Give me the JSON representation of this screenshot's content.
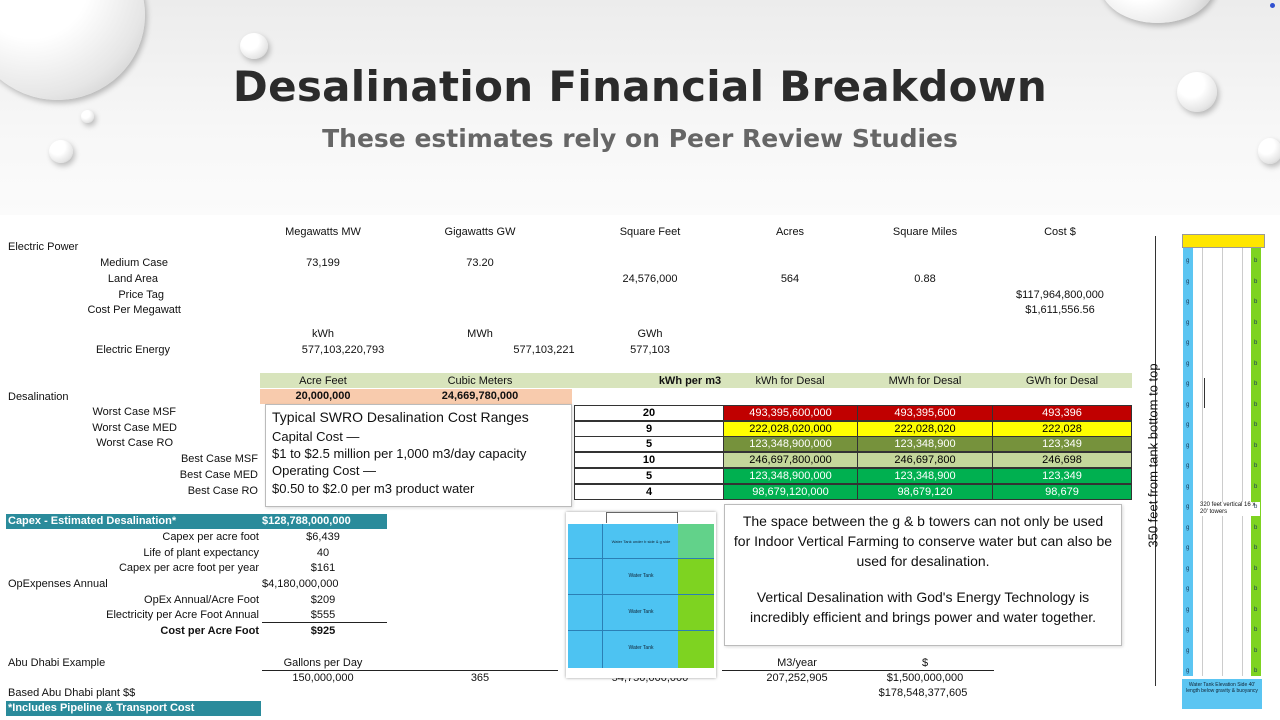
{
  "header": {
    "title": "Desalination Financial Breakdown",
    "subtitle": "These estimates rely on Peer Review Studies"
  },
  "power": {
    "columns": [
      "Megawatts MW",
      "Gigawatts GW",
      "Square Feet",
      "Acres",
      "Square Miles",
      "Cost $"
    ],
    "section": "Electric Power",
    "rows": {
      "medium_case": {
        "label": "Medium Case",
        "mw": "73,199",
        "gw": "73.20"
      },
      "land_area": {
        "label": "Land Area",
        "sqft": "24,576,000",
        "acres": "564",
        "sqmi": "0.88"
      },
      "price_tag": {
        "label": "Price Tag",
        "cost": "$117,964,800,000"
      },
      "cost_per_mw": {
        "label": "Cost Per Megawatt",
        "cost": "$1,611,556.56"
      }
    },
    "energy_units": [
      "kWh",
      "MWh",
      "GWh"
    ],
    "energy": {
      "label": "Electric Energy",
      "kwh": "577,103,220,793",
      "mwh": "577,103,221",
      "gwh": "577,103"
    }
  },
  "desal": {
    "section": "Desalination",
    "headers": [
      "Acre Feet",
      "Cubic Meters",
      "kWh per m3",
      "kWh for Desal",
      "MWh for Desal",
      "GWh for Desal"
    ],
    "acre_feet": "20,000,000",
    "cubic_meters": "24,669,780,000",
    "rows": [
      {
        "label": "Worst Case MSF",
        "kwh_m3": "20",
        "kwh": "493,395,600,000",
        "mwh": "493,395,600",
        "gwh": "493,396",
        "color": "#c00000",
        "text": "#ffffff"
      },
      {
        "label": "Worst Case MED",
        "kwh_m3": "9",
        "kwh": "222,028,020,000",
        "mwh": "222,028,020",
        "gwh": "222,028",
        "color": "#ffff00",
        "text": "#000000"
      },
      {
        "label": "Worst Case RO",
        "kwh_m3": "5",
        "kwh": "123,348,900,000",
        "mwh": "123,348,900",
        "gwh": "123,349",
        "color": "#76923c",
        "text": "#ffffff"
      },
      {
        "label": "Best Case MSF",
        "kwh_m3": "10",
        "kwh": "246,697,800,000",
        "mwh": "246,697,800",
        "gwh": "246,698",
        "color": "#c4d79b",
        "text": "#000000"
      },
      {
        "label": "Best Case MED",
        "kwh_m3": "5",
        "kwh": "123,348,900,000",
        "mwh": "123,348,900",
        "gwh": "123,349",
        "color": "#00b050",
        "text": "#ffffff"
      },
      {
        "label": "Best Case RO",
        "kwh_m3": "4",
        "kwh": "98,679,120,000",
        "mwh": "98,679,120",
        "gwh": "98,679",
        "color": "#00b050",
        "text": "#ffffff"
      }
    ]
  },
  "swro_callout": {
    "title": "Typical SWRO Desalination Cost Ranges",
    "l1": "Capital Cost —",
    "l2": "$1 to $2.5 million per 1,000 m3/day capacity",
    "l3": "Operating Cost —",
    "l4": "$0.50 to $2.0 per m3 product water"
  },
  "capex": {
    "title": "Capex - Estimated Desalination*",
    "total": "$128,788,000,000",
    "rows": [
      {
        "label": "Capex per acre foot",
        "value": "$6,439"
      },
      {
        "label": "Life of plant expectancy",
        "value": "40"
      },
      {
        "label": "Capex per acre foot per year",
        "value": "$161"
      }
    ],
    "opex_label": "OpExpenses Annual",
    "opex_value": "$4,180,000,000",
    "rows2": [
      {
        "label": "OpEx Annual/Acre Foot",
        "value": "$209"
      },
      {
        "label": "Electricity per Acre Foot Annual",
        "value": "$555"
      }
    ],
    "cost_label": "Cost per Acre Foot",
    "cost_value": "$925"
  },
  "abu_dhabi": {
    "label": "Abu Dhabi Example",
    "gal_header": "Gallons per Day",
    "gal": "150,000,000",
    "days": "365",
    "partial": "54,750,000,000",
    "m3_header": "M3/year",
    "m3": "207,252,905",
    "usd_header": "$",
    "usd": "$1,500,000,000",
    "based_label": "Based Abu Dhabi plant $$",
    "based_value": "$178,548,377,605",
    "note": "*Includes Pipeline & Transport Cost"
  },
  "tower_callout": {
    "p1": "The space between the g & b towers can not only be used for Indoor Vertical Farming to conserve water but can also be used for desalination.",
    "p2": "Vertical Desalination with God's Energy Technology is incredibly efficient and brings power and water together."
  },
  "tank_figure": {
    "cap_label": "Water Tank under b side & g side",
    "label": "Water Tank"
  },
  "tower_diagram": {
    "side_label": "350 feet from tank bottom to top",
    "mid_label": "320 feet vertical 16 x 20' towers",
    "bottom_label": "Water Tank Elevation Side 40' length below gravity & buoyancy",
    "g": "g",
    "b": "b"
  },
  "colors": {
    "teal": "#2a8b9b",
    "header_green": "#d8e4bc",
    "peach": "#f8cbad",
    "tower_blue": "#5bc5f2",
    "tower_green": "#7ed321",
    "tank_top": "#ffe600"
  }
}
